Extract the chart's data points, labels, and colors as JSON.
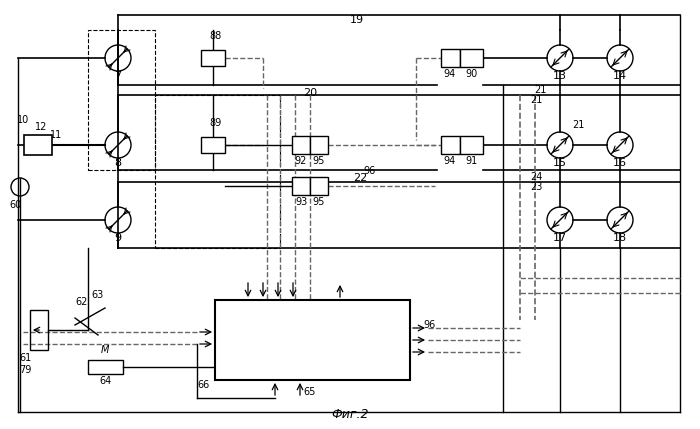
{
  "bg_color": "#ffffff",
  "lc": "#000000",
  "figsize": [
    7.0,
    4.29
  ],
  "dpi": 100,
  "caption": "Фиг.2"
}
